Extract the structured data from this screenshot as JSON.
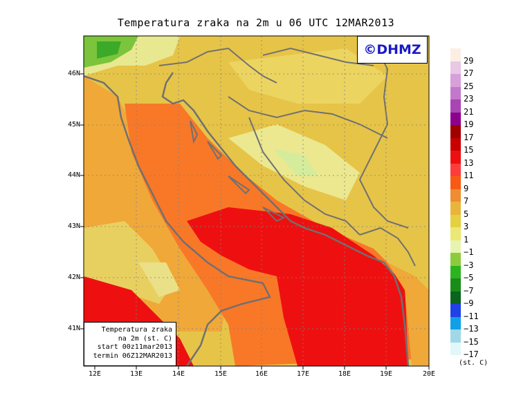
{
  "title": "Temperatura zraka na 2m u 06 UTC 12MAR2013",
  "credit": "©DHMZ",
  "info_box": {
    "line1": "Temperatura zraka",
    "line2": "na 2m (st. C)",
    "line3": "start 00z11mar2013",
    "line4": "termin 06Z12MAR2013"
  },
  "lat_labels": [
    "46N",
    "45N",
    "44N",
    "43N",
    "42N",
    "41N"
  ],
  "lon_labels": [
    "12E",
    "13E",
    "14E",
    "15E",
    "16E",
    "17E",
    "18E",
    "19E",
    "20E"
  ],
  "colorbar": {
    "labels": [
      "29",
      "27",
      "25",
      "23",
      "21",
      "19",
      "17",
      "15",
      "13",
      "11",
      "9",
      "7",
      "5",
      "3",
      "1",
      "−1",
      "−3",
      "−5",
      "−7",
      "−9",
      "−11",
      "−13",
      "−15",
      "−17"
    ],
    "colors": [
      "#fdeee4",
      "#e8c8e4",
      "#d8a0d8",
      "#c478cc",
      "#aa44b4",
      "#8c008c",
      "#a00000",
      "#c80000",
      "#ee1010",
      "#ff3c3c",
      "#f85a14",
      "#f08c32",
      "#eab43c",
      "#e4d040",
      "#ece874",
      "#e6f4b0",
      "#8ccc3c",
      "#2cb41e",
      "#1a8c1a",
      "#0a641e",
      "#2040e8",
      "#10a0e8",
      "#a0d8e8",
      "#e0f8f8"
    ],
    "units": "(st. C)"
  },
  "colors": {
    "sea_warm": "#ee1010",
    "sea_mild": "#f87828",
    "coast": "#f0a838",
    "land": "#e8c848",
    "borders": "#707070"
  }
}
